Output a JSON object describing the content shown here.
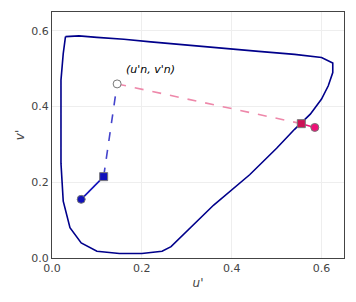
{
  "chart_data": {
    "type": "line",
    "xlabel": "u'",
    "ylabel": "v'",
    "xlim": [
      0,
      0.65
    ],
    "ylim": [
      0,
      0.65
    ],
    "xticks": [
      {
        "value": 0,
        "label": "0.0"
      },
      0.2,
      0.4,
      0.6
    ],
    "yticks": [
      {
        "value": 0,
        "label": "0.0"
      },
      0.2,
      0.4,
      0.6
    ],
    "series": [
      {
        "type": "line",
        "color": "#00008b",
        "line_style": "solid",
        "x": [
          0.03,
          0.06,
          0.1,
          0.16,
          0.22,
          0.3,
          0.38,
          0.46,
          0.54,
          0.6,
          0.625,
          0.625,
          0.615,
          0.6,
          0.575,
          0.54,
          0.5,
          0.44,
          0.36,
          0.3,
          0.265,
          0.245,
          0.2,
          0.15,
          0.1,
          0.065,
          0.04,
          0.025,
          0.02,
          0.02,
          0.02,
          0.025,
          0.03
        ],
        "values": [
          0.585,
          0.587,
          0.583,
          0.578,
          0.571,
          0.562,
          0.553,
          0.546,
          0.538,
          0.53,
          0.515,
          0.49,
          0.455,
          0.42,
          0.38,
          0.34,
          0.29,
          0.22,
          0.14,
          0.07,
          0.03,
          0.018,
          0.012,
          0.012,
          0.018,
          0.04,
          0.08,
          0.15,
          0.25,
          0.36,
          0.47,
          0.54,
          0.585
        ]
      },
      {
        "type": "line",
        "color": "#1111bb",
        "line_style": "solid",
        "x": [
          0.065,
          0.115
        ],
        "values": [
          0.155,
          0.215
        ]
      },
      {
        "type": "line",
        "color": "#4444cc",
        "line_style": "dashed",
        "x": [
          0.115,
          0.145
        ],
        "values": [
          0.215,
          0.46
        ]
      },
      {
        "type": "line",
        "color": "#ee88aa",
        "line_style": "dashed",
        "x": [
          0.145,
          0.555
        ],
        "values": [
          0.46,
          0.355
        ]
      },
      {
        "type": "line",
        "color": "#ee1177",
        "line_style": "solid",
        "x": [
          0.555,
          0.585
        ],
        "values": [
          0.355,
          0.345
        ]
      },
      {
        "type": "scatter",
        "color": "white",
        "marker": "circle",
        "x": [
          0.145
        ],
        "values": [
          0.46
        ]
      },
      {
        "type": "scatter",
        "color": "#1111bb",
        "marker": "square",
        "x": [
          0.115
        ],
        "values": [
          0.215
        ]
      },
      {
        "type": "scatter",
        "color": "#1111bb",
        "marker": "circle",
        "x": [
          0.065
        ],
        "values": [
          0.155
        ]
      },
      {
        "type": "scatter",
        "color": "#cc1155",
        "marker": "square",
        "x": [
          0.555
        ],
        "values": [
          0.355
        ]
      },
      {
        "type": "scatter",
        "color": "#ee1177",
        "marker": "circle",
        "x": [
          0.585
        ],
        "values": [
          0.345
        ]
      }
    ],
    "annotations": [
      {
        "text": "(u'n, v'n)",
        "x": 0.16,
        "y": 0.475,
        "color": "black"
      }
    ]
  }
}
